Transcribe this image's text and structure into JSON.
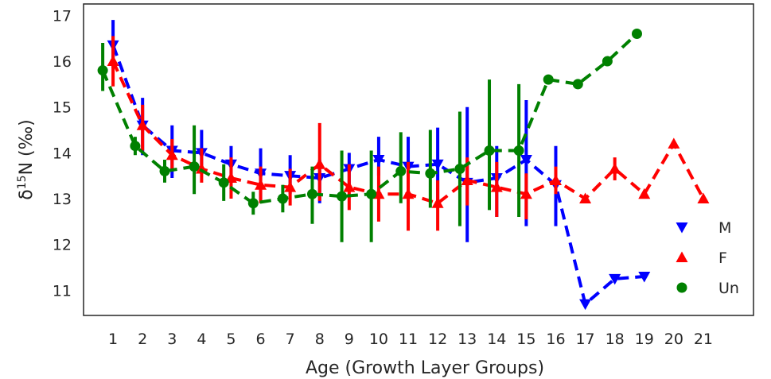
{
  "chart_data": {
    "type": "line",
    "title": "",
    "xlabel": "Age (Growth Layer Groups)",
    "ylabel_parts": {
      "main": "δ",
      "sup": "15",
      "rest": "N (‰)"
    },
    "x_ticks": [
      "1",
      "2",
      "3",
      "4",
      "5",
      "6",
      "7",
      "8",
      "9",
      "10",
      "11",
      "12",
      "13",
      "14",
      "15",
      "16",
      "17",
      "18",
      "19",
      "20",
      "21"
    ],
    "y_ticks": [
      "11",
      "12",
      "13",
      "14",
      "15",
      "16",
      "17"
    ],
    "xlim": [
      0,
      22.7
    ],
    "ylim": [
      10.45,
      17.25
    ],
    "grid": false,
    "legend_position": "lower-right",
    "series": [
      {
        "name": "M",
        "color": "#0000ff",
        "marker": "triangle-down",
        "points": [
          {
            "x": 1,
            "y": 16.35,
            "lo": 15.85,
            "hi": 16.9
          },
          {
            "x": 2,
            "y": 14.6,
            "lo": 13.95,
            "hi": 15.2
          },
          {
            "x": 3,
            "y": 14.05,
            "lo": 13.45,
            "hi": 14.6
          },
          {
            "x": 4,
            "y": 14.0,
            "lo": 13.55,
            "hi": 14.5
          },
          {
            "x": 5,
            "y": 13.75,
            "lo": 13.4,
            "hi": 14.15
          },
          {
            "x": 6,
            "y": 13.55,
            "lo": 12.9,
            "hi": 14.1
          },
          {
            "x": 7,
            "y": 13.5,
            "lo": 13.1,
            "hi": 13.95
          },
          {
            "x": 8,
            "y": 13.45,
            "lo": 12.9,
            "hi": 13.85
          },
          {
            "x": 9,
            "y": 13.65,
            "lo": 13.3,
            "hi": 14.0
          },
          {
            "x": 10,
            "y": 13.85,
            "lo": 13.5,
            "hi": 14.35
          },
          {
            "x": 11,
            "y": 13.7,
            "lo": 13.15,
            "hi": 14.35
          },
          {
            "x": 12,
            "y": 13.75,
            "lo": 12.95,
            "hi": 14.55
          },
          {
            "x": 13,
            "y": 13.35,
            "lo": 12.05,
            "hi": 15.0
          },
          {
            "x": 14,
            "y": 13.45,
            "lo": 12.6,
            "hi": 14.15
          },
          {
            "x": 15,
            "y": 13.85,
            "lo": 12.4,
            "hi": 15.15
          },
          {
            "x": 16,
            "y": 13.3,
            "lo": 12.4,
            "hi": 14.15
          },
          {
            "x": 17,
            "y": 10.7,
            "lo": null,
            "hi": null
          },
          {
            "x": 18,
            "y": 11.25,
            "lo": null,
            "hi": null
          },
          {
            "x": 19,
            "y": 11.3,
            "lo": null,
            "hi": null
          }
        ]
      },
      {
        "name": "F",
        "color": "#ff0000",
        "marker": "triangle-up",
        "points": [
          {
            "x": 1,
            "y": 16.0,
            "lo": 15.45,
            "hi": 16.55
          },
          {
            "x": 2,
            "y": 14.6,
            "lo": 14.05,
            "hi": 15.05
          },
          {
            "x": 3,
            "y": 13.95,
            "lo": 13.6,
            "hi": 14.3
          },
          {
            "x": 4,
            "y": 13.65,
            "lo": 13.35,
            "hi": 14.1
          },
          {
            "x": 5,
            "y": 13.45,
            "lo": 13.0,
            "hi": 13.9
          },
          {
            "x": 6,
            "y": 13.3,
            "lo": 12.9,
            "hi": 13.7
          },
          {
            "x": 7,
            "y": 13.25,
            "lo": 12.85,
            "hi": 13.65
          },
          {
            "x": 8,
            "y": 13.75,
            "lo": 12.95,
            "hi": 14.65
          },
          {
            "x": 9,
            "y": 13.25,
            "lo": 12.75,
            "hi": 13.75
          },
          {
            "x": 10,
            "y": 13.1,
            "lo": 12.5,
            "hi": 13.7
          },
          {
            "x": 11,
            "y": 13.1,
            "lo": 12.3,
            "hi": 13.8
          },
          {
            "x": 12,
            "y": 12.9,
            "lo": 12.3,
            "hi": 13.4
          },
          {
            "x": 13,
            "y": 13.4,
            "lo": 12.85,
            "hi": 13.9
          },
          {
            "x": 14,
            "y": 13.25,
            "lo": 12.6,
            "hi": 13.8
          },
          {
            "x": 15,
            "y": 13.1,
            "lo": 12.55,
            "hi": 13.55
          },
          {
            "x": 16,
            "y": 13.4,
            "lo": 13.1,
            "hi": 13.7
          },
          {
            "x": 17,
            "y": 13.0,
            "lo": null,
            "hi": null
          },
          {
            "x": 18,
            "y": 13.65,
            "lo": 13.4,
            "hi": 13.9
          },
          {
            "x": 19,
            "y": 13.1,
            "lo": null,
            "hi": null
          },
          {
            "x": 20,
            "y": 14.2,
            "lo": null,
            "hi": null
          },
          {
            "x": 21,
            "y": 13.0,
            "lo": null,
            "hi": null
          }
        ]
      },
      {
        "name": "Un",
        "color": "#008000",
        "marker": "circle",
        "points": [
          {
            "x": 0.65,
            "y": 15.8,
            "lo": 15.35,
            "hi": 16.4
          },
          {
            "x": 1.75,
            "y": 14.15,
            "lo": 13.95,
            "hi": 14.35
          },
          {
            "x": 2.75,
            "y": 13.6,
            "lo": 13.35,
            "hi": 13.85
          },
          {
            "x": 3.75,
            "y": 13.7,
            "lo": 13.1,
            "hi": 14.6
          },
          {
            "x": 4.75,
            "y": 13.35,
            "lo": 12.95,
            "hi": 13.75
          },
          {
            "x": 5.75,
            "y": 12.9,
            "lo": 12.65,
            "hi": 13.15
          },
          {
            "x": 6.75,
            "y": 13.0,
            "lo": 12.7,
            "hi": 13.3
          },
          {
            "x": 7.75,
            "y": 13.1,
            "lo": 12.45,
            "hi": 13.7
          },
          {
            "x": 8.75,
            "y": 13.05,
            "lo": 12.05,
            "hi": 14.05
          },
          {
            "x": 9.75,
            "y": 13.1,
            "lo": 12.05,
            "hi": 14.05
          },
          {
            "x": 10.75,
            "y": 13.6,
            "lo": 12.9,
            "hi": 14.45
          },
          {
            "x": 11.75,
            "y": 13.55,
            "lo": 12.8,
            "hi": 14.5
          },
          {
            "x": 12.75,
            "y": 13.65,
            "lo": 12.4,
            "hi": 14.9
          },
          {
            "x": 13.75,
            "y": 14.05,
            "lo": 12.75,
            "hi": 15.6
          },
          {
            "x": 14.75,
            "y": 14.05,
            "lo": 12.6,
            "hi": 15.5
          },
          {
            "x": 15.75,
            "y": 15.6,
            "lo": null,
            "hi": null
          },
          {
            "x": 16.75,
            "y": 15.5,
            "lo": null,
            "hi": null
          },
          {
            "x": 17.75,
            "y": 16.0,
            "lo": null,
            "hi": null
          },
          {
            "x": 18.75,
            "y": 16.6,
            "lo": null,
            "hi": null
          }
        ]
      }
    ]
  }
}
